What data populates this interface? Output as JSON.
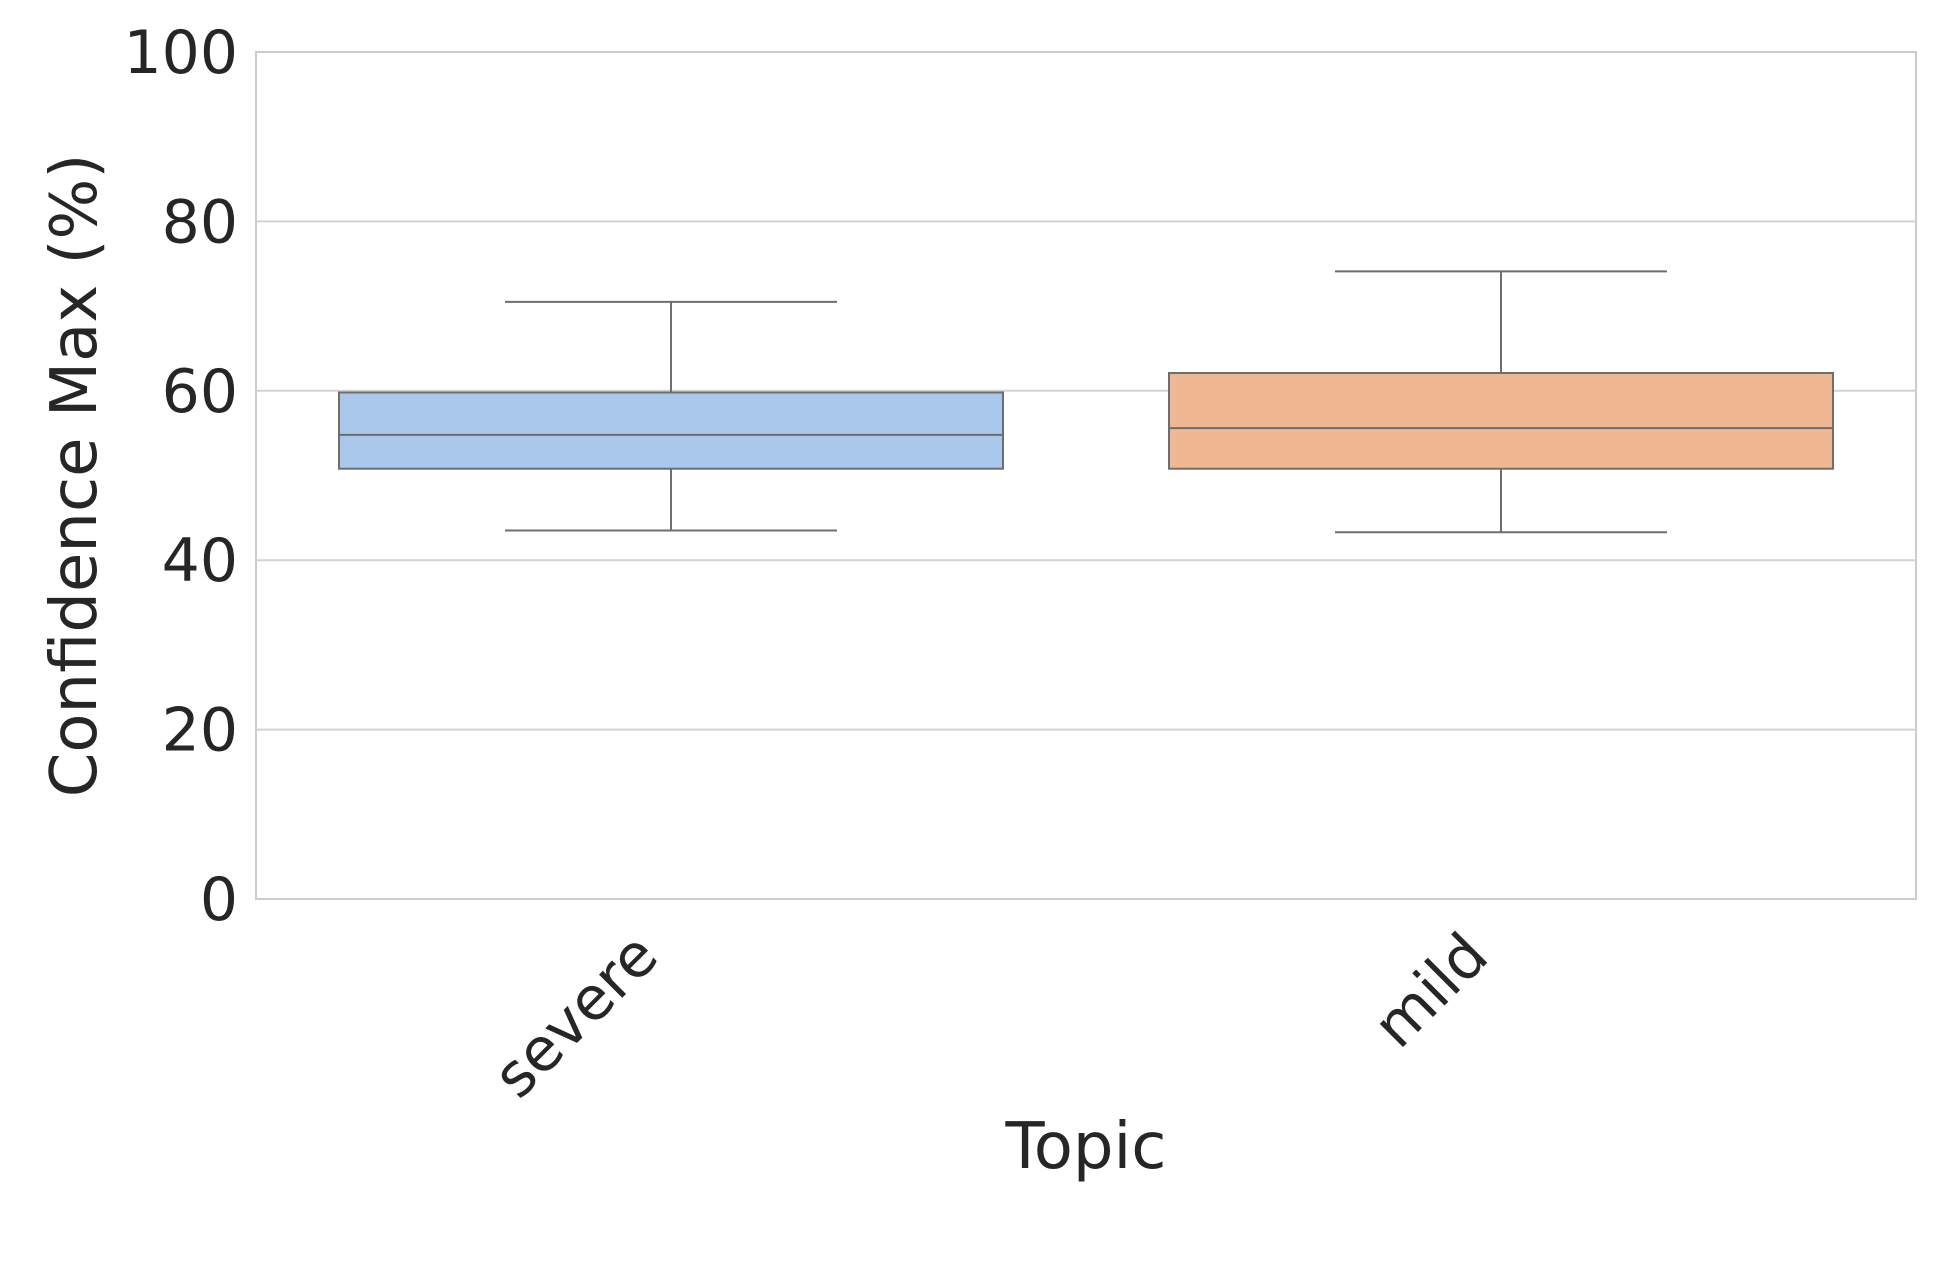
{
  "chart_data": {
    "type": "box",
    "xlabel": "Topic",
    "ylabel": "Confidence Max (%)",
    "ylim": [
      0,
      100
    ],
    "yticks": [
      0,
      20,
      40,
      60,
      80,
      100
    ],
    "grid": true,
    "categories": [
      "severe",
      "mild"
    ],
    "boxes": [
      {
        "category": "severe",
        "whisker_low": 43.5,
        "q1": 50.8,
        "median": 54.8,
        "q3": 59.8,
        "whisker_high": 70.5,
        "color": "#a9c8ec"
      },
      {
        "category": "mild",
        "whisker_low": 43.3,
        "q1": 50.8,
        "median": 55.6,
        "q3": 62.1,
        "whisker_high": 74.1,
        "color": "#f0b892"
      }
    ],
    "line_color": "#6e6e6e",
    "grid_color": "#d3d3d3"
  }
}
